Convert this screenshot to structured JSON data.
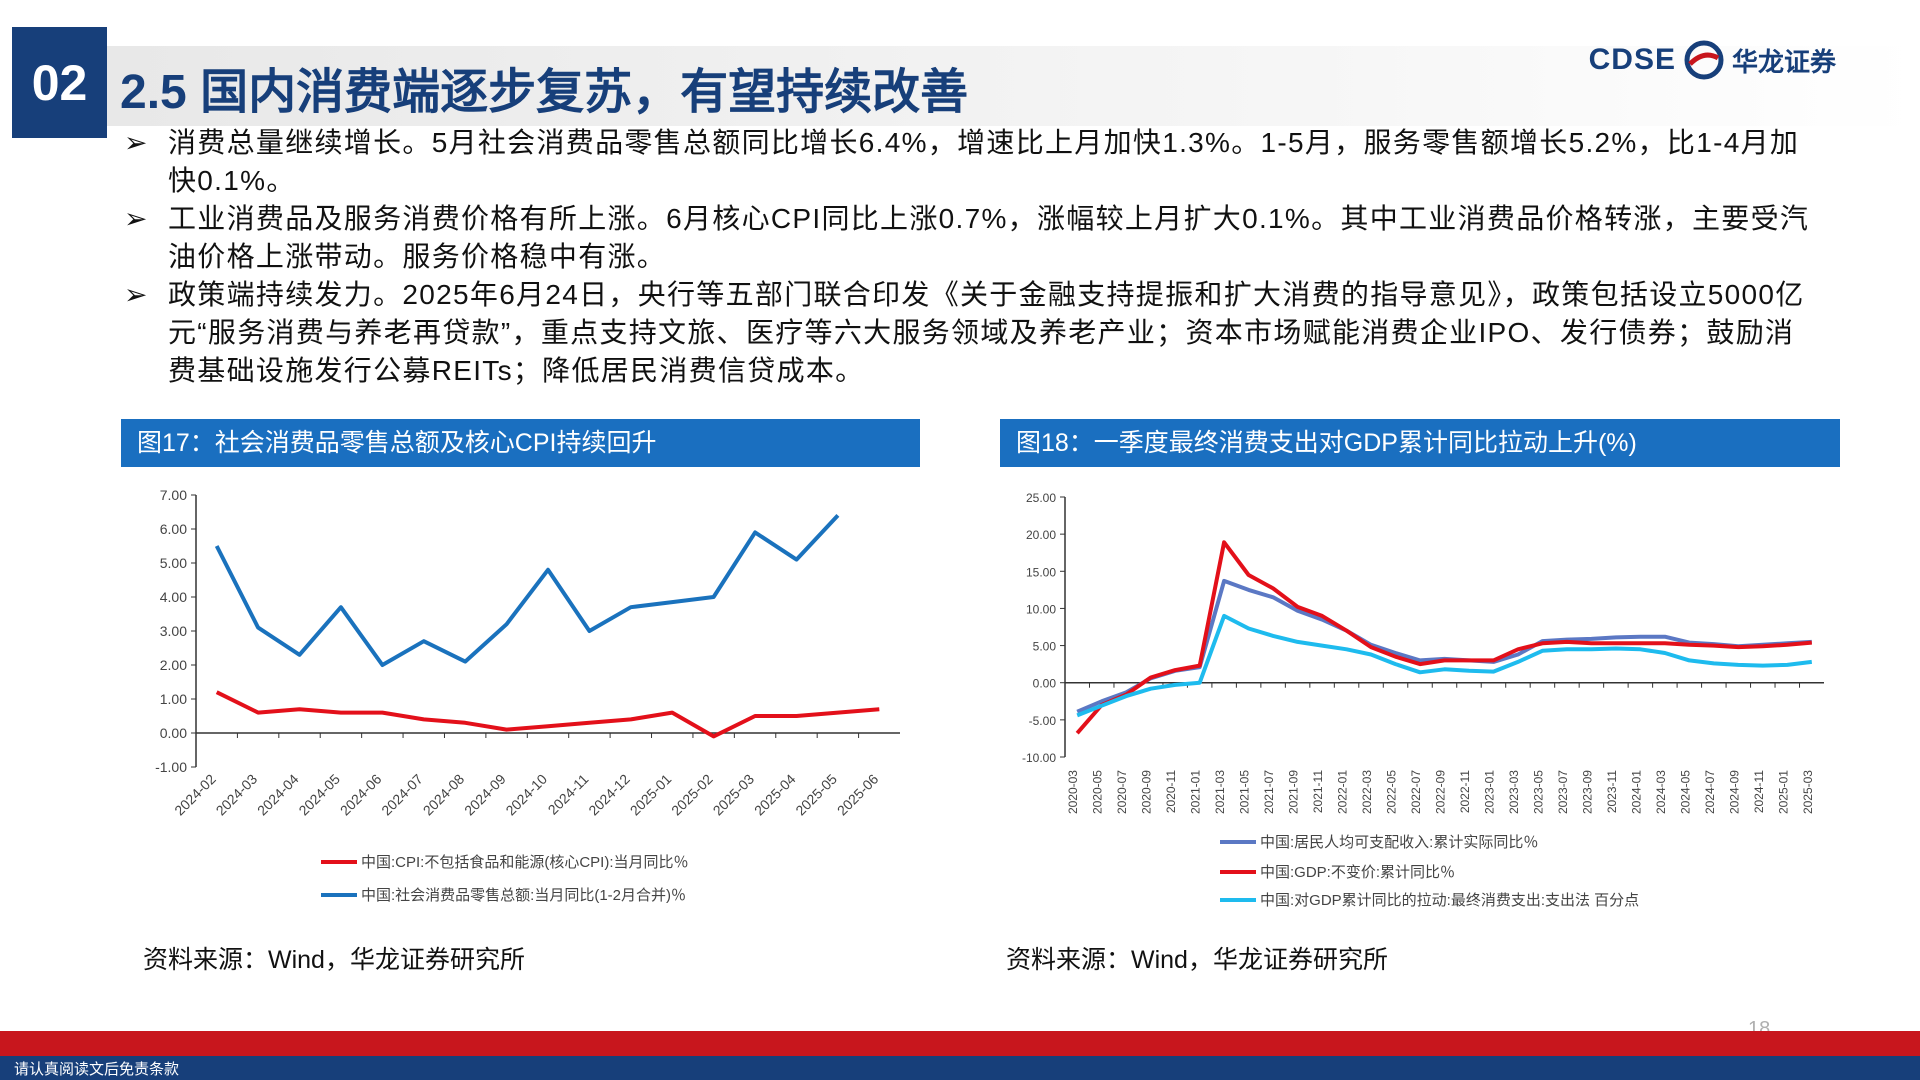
{
  "header": {
    "number": "02",
    "title": "2.5 国内消费端逐步复苏，有望持续改善",
    "logo_text": "CDSE",
    "logo_name": "华龙证券"
  },
  "bullets": [
    "消费总量继续增长。5月社会消费品零售总额同比增长6.4%，增速比上月加快1.3%。1-5月，服务零售额增长5.2%，比1-4月加快0.1%。",
    "工业消费品及服务消费价格有所上涨。6月核心CPI同比上涨0.7%，涨幅较上月扩大0.1%。其中工业消费品价格转涨，主要受汽油价格上涨带动。服务价格稳中有涨。",
    "政策端持续发力。2025年6月24日，央行等五部门联合印发《关于金融支持提振和扩大消费的指导意见》，政策包括设立5000亿元“服务消费与养老再贷款”，重点支持文旅、医疗等六大服务领域及养老产业；资本市场赋能消费企业IPO、发行债券；鼓励消费基础设施发行公募REITs；降低居民消费信贷成本。"
  ],
  "chart_data": [
    {
      "type": "line",
      "title": "图17：社会消费品零售总额及核心CPI持续回升",
      "source": "资料来源：Wind，华龙证券研究所",
      "categories": [
        "2024-02",
        "2024-03",
        "2024-04",
        "2024-05",
        "2024-06",
        "2024-07",
        "2024-08",
        "2024-09",
        "2024-10",
        "2024-11",
        "2024-12",
        "2025-01",
        "2025-02",
        "2025-03",
        "2025-04",
        "2025-05",
        "2025-06"
      ],
      "series": [
        {
          "name": "中国:CPI:不包括食品和能源(核心CPI):当月同比％",
          "color": "#e3101a",
          "values": [
            1.2,
            0.6,
            0.7,
            0.6,
            0.6,
            0.4,
            0.3,
            0.1,
            0.2,
            0.3,
            0.4,
            0.6,
            -0.1,
            0.5,
            0.5,
            0.6,
            0.7
          ]
        },
        {
          "name": "中国:社会消费品零售总额:当月同比(1-2月合并)％",
          "color": "#1a72bd",
          "values": [
            5.5,
            3.1,
            2.3,
            3.7,
            2.0,
            2.7,
            2.1,
            3.2,
            4.8,
            3.0,
            3.7,
            3.85,
            4.0,
            5.9,
            5.1,
            6.4,
            null
          ]
        }
      ],
      "ylim": [
        -1,
        7
      ],
      "yticks": [
        {
          "value": -1,
          "label": "-1.00"
        },
        {
          "value": 0,
          "label": "0.00"
        },
        {
          "value": 1,
          "label": "1.00"
        },
        {
          "value": 2,
          "label": "2.00"
        },
        {
          "value": 3,
          "label": "3.00"
        },
        {
          "value": 4,
          "label": "4.00"
        },
        {
          "value": 5,
          "label": "5.00"
        },
        {
          "value": 6,
          "label": "6.00"
        },
        {
          "value": 7,
          "label": "7.00"
        }
      ],
      "grid": false
    },
    {
      "type": "line",
      "title": "图18：一季度最终消费支出对GDP累计同比拉动上升(%)",
      "source": "资料来源：Wind，华龙证券研究所",
      "categories": [
        "2020-03",
        "2020-05",
        "2020-07",
        "2020-09",
        "2020-11",
        "2021-01",
        "2021-03",
        "2021-05",
        "2021-07",
        "2021-09",
        "2021-11",
        "2022-01",
        "2022-03",
        "2022-05",
        "2022-07",
        "2022-09",
        "2022-11",
        "2023-01",
        "2023-03",
        "2023-05",
        "2023-07",
        "2023-09",
        "2023-11",
        "2024-01",
        "2024-03",
        "2024-05",
        "2024-07",
        "2024-09",
        "2024-11",
        "2025-01",
        "2025-03"
      ],
      "series": [
        {
          "name": "中国:居民人均可支配收入:累计实际同比％",
          "color": "#5b78c4",
          "values": [
            -3.9,
            -2.5,
            -1.3,
            0.6,
            1.6,
            2.1,
            13.7,
            12.5,
            11.5,
            9.7,
            8.5,
            7.0,
            5.1,
            4.0,
            3.0,
            3.2,
            3.0,
            2.8,
            3.8,
            5.6,
            5.8,
            5.9,
            6.1,
            6.2,
            6.2,
            5.4,
            5.2,
            4.9,
            5.1,
            5.3,
            5.5
          ]
        },
        {
          "name": "中国:GDP:不变价:累计同比％",
          "color": "#e3101a",
          "values": [
            -6.8,
            -3.0,
            -1.6,
            0.7,
            1.7,
            2.3,
            18.9,
            14.5,
            12.7,
            10.2,
            9.0,
            7.0,
            4.8,
            3.5,
            2.5,
            3.0,
            3.0,
            3.0,
            4.5,
            5.3,
            5.5,
            5.3,
            5.3,
            5.3,
            5.3,
            5.1,
            5.0,
            4.8,
            4.9,
            5.1,
            5.4
          ]
        },
        {
          "name": "中国:对GDP累计同比的拉动:最终消费支出:支出法 百分点",
          "color": "#1ebbee",
          "values": [
            -4.4,
            -3.1,
            -1.8,
            -0.8,
            -0.3,
            0.0,
            9.0,
            7.3,
            6.3,
            5.5,
            5.0,
            4.5,
            3.8,
            2.5,
            1.4,
            1.8,
            1.6,
            1.5,
            2.8,
            4.3,
            4.5,
            4.5,
            4.6,
            4.5,
            4.0,
            3.0,
            2.6,
            2.4,
            2.3,
            2.4,
            2.8
          ]
        }
      ],
      "ylim": [
        -10,
        25
      ],
      "yticks": [
        {
          "value": -10,
          "label": "-10.00"
        },
        {
          "value": -5,
          "label": "-5.00"
        },
        {
          "value": 0,
          "label": "0.00"
        },
        {
          "value": 5,
          "label": "5.00"
        },
        {
          "value": 10,
          "label": "10.00"
        },
        {
          "value": 15,
          "label": "15.00"
        },
        {
          "value": 20,
          "label": "20.00"
        },
        {
          "value": 25,
          "label": "25.00"
        }
      ],
      "grid": false
    }
  ],
  "footer": {
    "page": "18",
    "disclaimer": "请认真阅读文后免责条款"
  }
}
